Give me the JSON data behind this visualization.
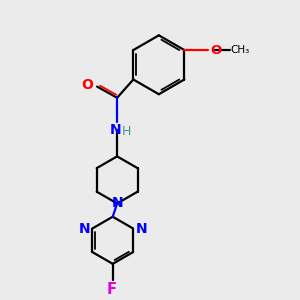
{
  "background_color": "#ebebeb",
  "bond_color": "#000000",
  "nitrogen_color": "#0000ff",
  "oxygen_color": "#ff0000",
  "fluorine_color": "#e000e0",
  "H_color": "#4a9090",
  "figsize": [
    3.0,
    3.0
  ],
  "dpi": 100,
  "xlim": [
    0,
    10
  ],
  "ylim": [
    0,
    10
  ]
}
